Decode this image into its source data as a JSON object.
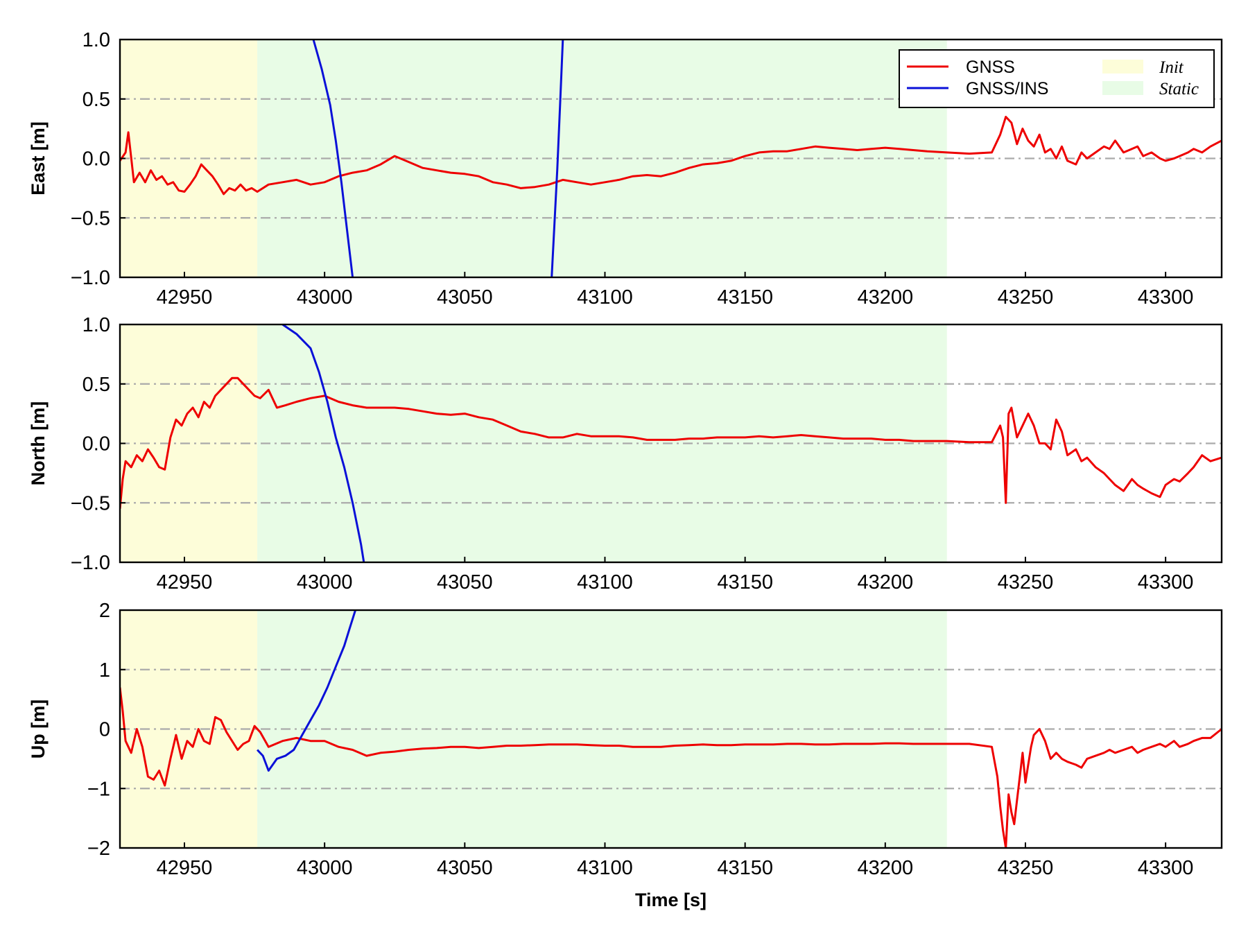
{
  "chart_data": {
    "type": "line",
    "xlabel": "Time [s]",
    "xlim": [
      42927,
      43320
    ],
    "xticks": [
      42950,
      43000,
      43050,
      43100,
      43150,
      43200,
      43250,
      43300
    ],
    "grid": "horizontal dash-dot",
    "legend_placement": "top-right of first panel",
    "colors": {
      "gnss": "#ee0000",
      "gnss_ins": "#0a10d8",
      "init": "#fdfdd9",
      "static": "#e8fce6",
      "grid": "#aaaaaa"
    },
    "legend": {
      "series": [
        "GNSS",
        "GNSS/INS"
      ],
      "shaded": [
        "Init",
        "Static"
      ]
    },
    "regions": [
      {
        "name": "Init",
        "x": [
          42927,
          42976
        ]
      },
      {
        "name": "Static",
        "x": [
          42976,
          43222
        ]
      }
    ],
    "panels": [
      {
        "ylabel": "East [m]",
        "ylim": [
          -1.0,
          1.0
        ],
        "yticks": [
          -1.0,
          -0.5,
          0.0,
          0.5,
          1.0
        ],
        "ytick_labels": [
          "−1.0",
          "−0.5",
          "0.0",
          "0.5",
          "1.0"
        ],
        "series": [
          {
            "name": "GNSS",
            "x": [
              42927,
              42929,
              42930,
              42932,
              42934,
              42936,
              42938,
              42940,
              42942,
              42944,
              42946,
              42948,
              42950,
              42952,
              42954,
              42956,
              42958,
              42960,
              42962,
              42964,
              42966,
              42968,
              42970,
              42972,
              42974,
              42976,
              42980,
              42985,
              42990,
              42995,
              43000,
              43005,
              43010,
              43015,
              43020,
              43025,
              43030,
              43035,
              43040,
              43045,
              43050,
              43055,
              43060,
              43065,
              43070,
              43075,
              43080,
              43085,
              43090,
              43095,
              43100,
              43105,
              43110,
              43115,
              43120,
              43125,
              43130,
              43135,
              43140,
              43145,
              43150,
              43155,
              43160,
              43165,
              43170,
              43175,
              43180,
              43185,
              43190,
              43195,
              43200,
              43205,
              43210,
              43215,
              43222,
              43230,
              43238,
              43241,
              43243,
              43245,
              43247,
              43249,
              43251,
              43253,
              43255,
              43257,
              43259,
              43261,
              43263,
              43265,
              43268,
              43270,
              43272,
              43275,
              43278,
              43280,
              43282,
              43285,
              43288,
              43290,
              43292,
              43295,
              43298,
              43300,
              43303,
              43305,
              43308,
              43310,
              43313,
              43316,
              43320
            ],
            "y": [
              -0.02,
              0.05,
              0.22,
              -0.2,
              -0.12,
              -0.2,
              -0.1,
              -0.18,
              -0.15,
              -0.22,
              -0.2,
              -0.27,
              -0.28,
              -0.22,
              -0.15,
              -0.05,
              -0.1,
              -0.15,
              -0.22,
              -0.3,
              -0.25,
              -0.27,
              -0.22,
              -0.27,
              -0.25,
              -0.28,
              -0.22,
              -0.2,
              -0.18,
              -0.22,
              -0.2,
              -0.15,
              -0.12,
              -0.1,
              -0.05,
              0.02,
              -0.03,
              -0.08,
              -0.1,
              -0.12,
              -0.13,
              -0.15,
              -0.2,
              -0.22,
              -0.25,
              -0.24,
              -0.22,
              -0.18,
              -0.2,
              -0.22,
              -0.2,
              -0.18,
              -0.15,
              -0.14,
              -0.15,
              -0.12,
              -0.08,
              -0.05,
              -0.04,
              -0.02,
              0.02,
              0.05,
              0.06,
              0.06,
              0.08,
              0.1,
              0.09,
              0.08,
              0.07,
              0.08,
              0.09,
              0.08,
              0.07,
              0.06,
              0.05,
              0.04,
              0.05,
              0.2,
              0.35,
              0.3,
              0.12,
              0.25,
              0.15,
              0.1,
              0.2,
              0.05,
              0.08,
              0.0,
              0.1,
              -0.02,
              -0.05,
              0.05,
              0.0,
              0.05,
              0.1,
              0.08,
              0.15,
              0.05,
              0.08,
              0.1,
              0.02,
              0.05,
              0.0,
              -0.02,
              0.0,
              0.02,
              0.05,
              0.08,
              0.05,
              0.1,
              0.15
            ]
          },
          {
            "name": "GNSS/INS",
            "segments": [
              {
                "x": [
                  42996,
                  42999,
                  43002,
                  43004,
                  43006,
                  43008,
                  43010
                ],
                "y": [
                  1.0,
                  0.75,
                  0.45,
                  0.15,
                  -0.2,
                  -0.6,
                  -1.0
                ]
              },
              {
                "x": [
                  43081,
                  43082,
                  43083,
                  43084,
                  43085
                ],
                "y": [
                  -1.0,
                  -0.55,
                  -0.1,
                  0.45,
                  1.0
                ]
              }
            ]
          }
        ]
      },
      {
        "ylabel": "North [m]",
        "ylim": [
          -1.0,
          1.0
        ],
        "yticks": [
          -1.0,
          -0.5,
          0.0,
          0.5,
          1.0
        ],
        "ytick_labels": [
          "−1.0",
          "−0.5",
          "0.0",
          "0.5",
          "1.0"
        ],
        "series": [
          {
            "name": "GNSS",
            "x": [
              42927,
              42928,
              42929,
              42931,
              42933,
              42935,
              42937,
              42939,
              42941,
              42943,
              42945,
              42947,
              42949,
              42951,
              42953,
              42955,
              42957,
              42959,
              42961,
              42963,
              42965,
              42967,
              42969,
              42971,
              42973,
              42975,
              42977,
              42980,
              42983,
              42986,
              42990,
              42995,
              43000,
              43005,
              43010,
              43015,
              43020,
              43025,
              43030,
              43035,
              43040,
              43045,
              43050,
              43055,
              43060,
              43065,
              43070,
              43075,
              43080,
              43085,
              43090,
              43095,
              43100,
              43105,
              43110,
              43115,
              43120,
              43125,
              43130,
              43135,
              43140,
              43145,
              43150,
              43155,
              43160,
              43165,
              43170,
              43175,
              43180,
              43185,
              43190,
              43195,
              43200,
              43205,
              43210,
              43215,
              43222,
              43230,
              43238,
              43241,
              43242,
              43243,
              43244,
              43245,
              43247,
              43249,
              43251,
              43253,
              43255,
              43257,
              43259,
              43261,
              43263,
              43265,
              43268,
              43270,
              43272,
              43275,
              43278,
              43280,
              43282,
              43285,
              43288,
              43290,
              43292,
              43295,
              43298,
              43300,
              43303,
              43305,
              43308,
              43310,
              43313,
              43316,
              43320
            ],
            "y": [
              -0.55,
              -0.3,
              -0.15,
              -0.2,
              -0.1,
              -0.15,
              -0.05,
              -0.12,
              -0.2,
              -0.22,
              0.05,
              0.2,
              0.15,
              0.25,
              0.3,
              0.22,
              0.35,
              0.3,
              0.4,
              0.45,
              0.5,
              0.55,
              0.55,
              0.5,
              0.45,
              0.4,
              0.38,
              0.45,
              0.3,
              0.32,
              0.35,
              0.38,
              0.4,
              0.35,
              0.32,
              0.3,
              0.3,
              0.3,
              0.29,
              0.27,
              0.25,
              0.24,
              0.25,
              0.22,
              0.2,
              0.15,
              0.1,
              0.08,
              0.05,
              0.05,
              0.08,
              0.06,
              0.06,
              0.06,
              0.05,
              0.03,
              0.03,
              0.03,
              0.04,
              0.04,
              0.05,
              0.05,
              0.05,
              0.06,
              0.05,
              0.06,
              0.07,
              0.06,
              0.05,
              0.04,
              0.04,
              0.04,
              0.03,
              0.03,
              0.02,
              0.02,
              0.02,
              0.01,
              0.01,
              0.15,
              0.05,
              -0.5,
              0.25,
              0.3,
              0.05,
              0.15,
              0.25,
              0.15,
              0.0,
              0.0,
              -0.05,
              0.2,
              0.1,
              -0.1,
              -0.05,
              -0.15,
              -0.12,
              -0.2,
              -0.25,
              -0.3,
              -0.35,
              -0.4,
              -0.3,
              -0.35,
              -0.38,
              -0.42,
              -0.45,
              -0.35,
              -0.3,
              -0.32,
              -0.25,
              -0.2,
              -0.1,
              -0.15,
              -0.12
            ]
          },
          {
            "name": "GNSS/INS",
            "segments": [
              {
                "x": [
                  42985,
                  42990,
                  42995,
                  42998,
                  43001,
                  43004,
                  43007,
                  43010,
                  43013,
                  43014
                ],
                "y": [
                  1.0,
                  0.92,
                  0.8,
                  0.6,
                  0.35,
                  0.05,
                  -0.2,
                  -0.5,
                  -0.85,
                  -1.0
                ]
              }
            ]
          }
        ]
      },
      {
        "ylabel": "Up [m]",
        "ylim": [
          -2,
          2
        ],
        "yticks": [
          -2,
          -1,
          0,
          1,
          2
        ],
        "ytick_labels": [
          "−2",
          "−1",
          "0",
          "1",
          "2"
        ],
        "series": [
          {
            "name": "GNSS",
            "x": [
              42927,
              42928,
              42929,
              42931,
              42933,
              42935,
              42937,
              42939,
              42941,
              42943,
              42945,
              42947,
              42949,
              42951,
              42953,
              42955,
              42957,
              42959,
              42961,
              42963,
              42965,
              42967,
              42969,
              42971,
              42973,
              42975,
              42977,
              42980,
              42985,
              42990,
              42995,
              43000,
              43005,
              43010,
              43015,
              43020,
              43025,
              43030,
              43035,
              43040,
              43045,
              43050,
              43055,
              43060,
              43065,
              43070,
              43075,
              43080,
              43085,
              43090,
              43095,
              43100,
              43105,
              43110,
              43115,
              43120,
              43125,
              43130,
              43135,
              43140,
              43145,
              43150,
              43155,
              43160,
              43165,
              43170,
              43175,
              43180,
              43185,
              43190,
              43195,
              43200,
              43205,
              43210,
              43215,
              43222,
              43230,
              43238,
              43240,
              43241,
              43242,
              43243,
              43244,
              43245,
              43246,
              43247,
              43248,
              43249,
              43250,
              43251,
              43252,
              43253,
              43255,
              43257,
              43259,
              43261,
              43263,
              43265,
              43268,
              43270,
              43272,
              43275,
              43278,
              43280,
              43282,
              43285,
              43288,
              43290,
              43292,
              43295,
              43298,
              43300,
              43303,
              43305,
              43308,
              43310,
              43313,
              43316,
              43320
            ],
            "y": [
              0.7,
              0.3,
              -0.2,
              -0.4,
              0.0,
              -0.3,
              -0.8,
              -0.85,
              -0.7,
              -0.95,
              -0.5,
              -0.1,
              -0.5,
              -0.2,
              -0.3,
              0.0,
              -0.2,
              -0.25,
              0.2,
              0.15,
              -0.05,
              -0.2,
              -0.35,
              -0.25,
              -0.2,
              0.05,
              -0.05,
              -0.3,
              -0.2,
              -0.15,
              -0.2,
              -0.2,
              -0.3,
              -0.35,
              -0.45,
              -0.4,
              -0.38,
              -0.35,
              -0.33,
              -0.32,
              -0.3,
              -0.3,
              -0.32,
              -0.3,
              -0.28,
              -0.28,
              -0.27,
              -0.26,
              -0.26,
              -0.26,
              -0.27,
              -0.28,
              -0.28,
              -0.3,
              -0.3,
              -0.3,
              -0.28,
              -0.27,
              -0.26,
              -0.27,
              -0.27,
              -0.26,
              -0.26,
              -0.26,
              -0.25,
              -0.25,
              -0.26,
              -0.26,
              -0.25,
              -0.25,
              -0.25,
              -0.24,
              -0.24,
              -0.25,
              -0.25,
              -0.25,
              -0.25,
              -0.3,
              -0.8,
              -1.3,
              -1.7,
              -2.0,
              -1.1,
              -1.4,
              -1.6,
              -1.2,
              -0.8,
              -0.4,
              -0.9,
              -0.6,
              -0.3,
              -0.1,
              0.0,
              -0.2,
              -0.5,
              -0.4,
              -0.5,
              -0.55,
              -0.6,
              -0.65,
              -0.5,
              -0.45,
              -0.4,
              -0.35,
              -0.4,
              -0.35,
              -0.3,
              -0.4,
              -0.35,
              -0.3,
              -0.25,
              -0.3,
              -0.2,
              -0.3,
              -0.25,
              -0.2,
              -0.15,
              -0.15,
              0.0
            ]
          },
          {
            "name": "GNSS/INS",
            "segments": [
              {
                "x": [
                  42976,
                  42978,
                  42980,
                  42983,
                  42986,
                  42989,
                  42992,
                  42995,
                  42998,
                  43001,
                  43004,
                  43007,
                  43009,
                  43011
                ],
                "y": [
                  -0.35,
                  -0.45,
                  -0.7,
                  -0.5,
                  -0.45,
                  -0.35,
                  -0.1,
                  0.15,
                  0.4,
                  0.7,
                  1.05,
                  1.4,
                  1.7,
                  2.0
                ]
              }
            ]
          }
        ]
      }
    ]
  }
}
